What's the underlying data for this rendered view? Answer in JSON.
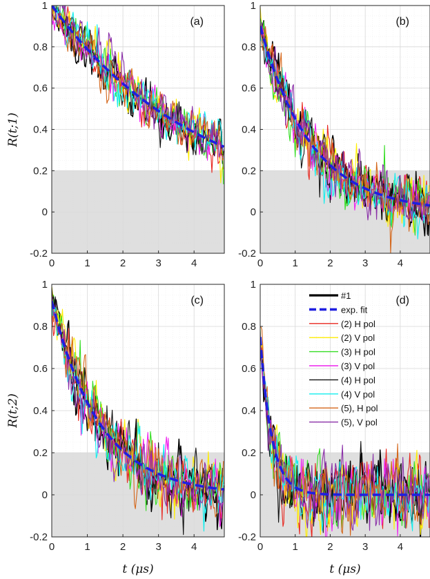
{
  "figure": {
    "ylabels": {
      "top": "R(t;1)",
      "bottom": "R(t;2)"
    },
    "xlabel": "t (μs)",
    "shade": {
      "ymin": -0.2,
      "ymax": 0.2,
      "color": "#d9d9d9"
    }
  },
  "legend": {
    "entries": [
      {
        "label": "#1",
        "color": "#000000",
        "style": "solid-bold"
      },
      {
        "label": "exp. fit",
        "color": "#1f1fe0",
        "style": "dashed-bold"
      },
      {
        "label": "(2) H pol",
        "color": "#e8261e",
        "style": "solid"
      },
      {
        "label": "(2) V pol",
        "color": "#ffee00",
        "style": "solid"
      },
      {
        "label": "(3) H pol",
        "color": "#33dd22",
        "style": "solid"
      },
      {
        "label": "(3) V pol",
        "color": "#ee22ee",
        "style": "solid"
      },
      {
        "label": "(4) H pol",
        "color": "#111111",
        "style": "solid"
      },
      {
        "label": "(4) V pol",
        "color": "#11eeee",
        "style": "solid"
      },
      {
        "label": "(5), H pol",
        "color": "#d4661a",
        "style": "solid"
      },
      {
        "label": "(5), V pol",
        "color": "#8a2fa8",
        "style": "solid"
      }
    ]
  },
  "chart_data": [
    {
      "type": "line",
      "panel_label": "(a)",
      "xlim": [
        0,
        4.85
      ],
      "ylim": [
        -0.2,
        1
      ],
      "xticks": [
        0,
        1,
        2,
        3,
        4
      ],
      "yticks": [
        -0.2,
        0,
        0.2,
        0.4,
        0.6,
        0.8,
        1
      ],
      "fit": {
        "amplitude": 1.0,
        "tau_us": 4.2
      },
      "noise": 0.045,
      "grid": true,
      "legend": "none"
    },
    {
      "type": "line",
      "panel_label": "(b)",
      "xlim": [
        0,
        4.85
      ],
      "ylim": [
        -0.2,
        1
      ],
      "xticks": [
        0,
        1,
        2,
        3,
        4
      ],
      "yticks": [
        -0.2,
        0,
        0.2,
        0.4,
        0.6,
        0.8,
        1
      ],
      "fit": {
        "amplitude": 0.9,
        "tau_us": 1.45
      },
      "noise": 0.055,
      "grid": true,
      "legend": "none"
    },
    {
      "type": "line",
      "panel_label": "(c)",
      "xlim": [
        0,
        4.85
      ],
      "ylim": [
        -0.2,
        1
      ],
      "xticks": [
        0,
        1,
        2,
        3,
        4
      ],
      "yticks": [
        -0.2,
        0,
        0.2,
        0.4,
        0.6,
        0.8,
        1
      ],
      "fit": {
        "amplitude": 0.92,
        "tau_us": 1.35
      },
      "noise": 0.06,
      "grid": true,
      "legend": "none"
    },
    {
      "type": "line",
      "panel_label": "(d)",
      "xlim": [
        0,
        4.85
      ],
      "ylim": [
        -0.2,
        1
      ],
      "xticks": [
        0,
        1,
        2,
        3,
        4
      ],
      "yticks": [
        -0.2,
        0,
        0.2,
        0.4,
        0.6,
        0.8,
        1
      ],
      "fit": {
        "amplitude": 0.75,
        "tau_us": 0.33
      },
      "noise": 0.065,
      "grid": true,
      "legend": "top-right"
    }
  ]
}
